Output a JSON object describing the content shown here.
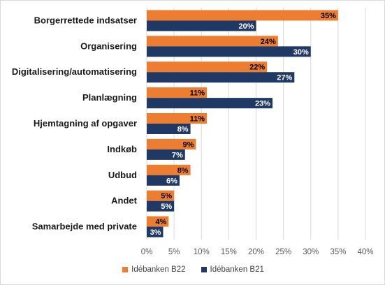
{
  "chart_data": {
    "type": "bar",
    "orientation": "horizontal",
    "categories": [
      "Borgerrettede indsatser",
      "Organisering",
      "Digitalisering/automatisering",
      "Planlægning",
      "Hjemtagning af opgaver",
      "Indkøb",
      "Udbud",
      "Andet",
      "Samarbejde med private"
    ],
    "series": [
      {
        "name": "Idébanken B22",
        "color": "#ED7D31",
        "values": [
          35,
          24,
          22,
          11,
          11,
          9,
          8,
          5,
          4
        ],
        "labels": [
          "35%",
          "24%",
          "22%",
          "11%",
          "11%",
          "9%",
          "8%",
          "5%",
          "4%"
        ]
      },
      {
        "name": "Idébanken B21",
        "color": "#1F3864",
        "values": [
          20,
          30,
          27,
          23,
          8,
          7,
          6,
          5,
          3
        ],
        "labels": [
          "20%",
          "30%",
          "27%",
          "23%",
          "8%",
          "7%",
          "6%",
          "5%",
          "3%"
        ]
      }
    ],
    "xlim": [
      0,
      40
    ],
    "xticks": [
      0,
      5,
      10,
      15,
      20,
      25,
      30,
      35,
      40
    ],
    "xtick_labels": [
      "0%",
      "5%",
      "10%",
      "15%",
      "20%",
      "25%",
      "30%",
      "35%",
      "40%"
    ],
    "grid": true,
    "legend_position": "bottom"
  }
}
